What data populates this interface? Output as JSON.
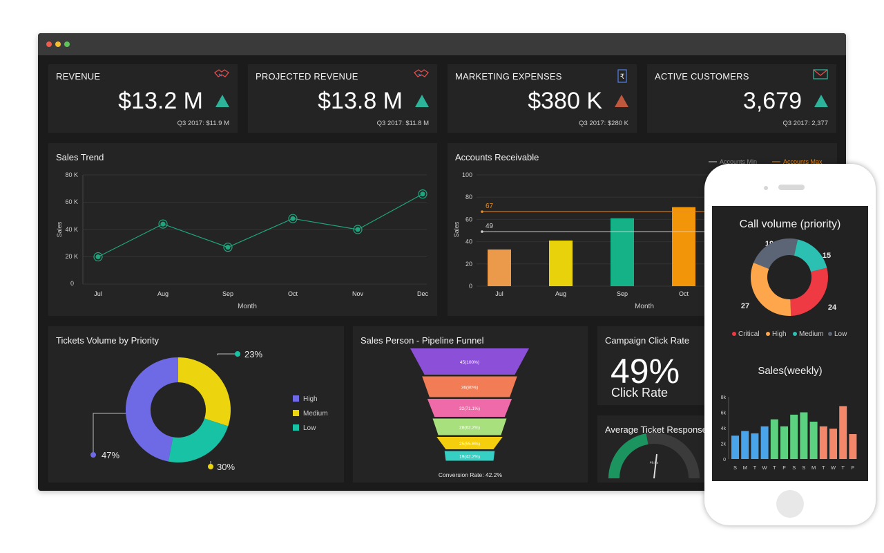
{
  "kpis": [
    {
      "title": "REVENUE",
      "value": "$13.2 M",
      "trend": "up",
      "sub": "Q3 2017: $11.9 M",
      "icon": "handshake-icon"
    },
    {
      "title": "PROJECTED REVENUE",
      "value": "$13.8 M",
      "trend": "up",
      "sub": "Q3 2017: $11.8 M",
      "icon": "handshake-icon"
    },
    {
      "title": "MARKETING EXPENSES",
      "value": "$380 K",
      "trend": "down",
      "sub": "Q3 2017: $280 K",
      "icon": "rupee-document-icon"
    },
    {
      "title": "ACTIVE CUSTOMERS",
      "value": "3,679",
      "trend": "up",
      "sub": "Q3 2017: 2,377",
      "icon": "envelope-icon"
    }
  ],
  "sales_trend": {
    "title": "Sales Trend",
    "xlabel": "Month",
    "ylabel": "Sales",
    "yticks": [
      "0",
      "20 K",
      "40 K",
      "60 K",
      "80 K"
    ]
  },
  "accounts": {
    "title": "Accounts Receivable",
    "xlabel": "Month",
    "ylabel": "Sales",
    "legend_min": "Accounts Min",
    "legend_max": "Accounts Max",
    "min_label": "49",
    "max_label": "67"
  },
  "tickets": {
    "title": "Tickets Volume by Priority",
    "labels": [
      "23%",
      "47%",
      "30%"
    ]
  },
  "funnel": {
    "title": "Sales Person - Pipeline Funnel",
    "footer": "Conversion Rate: 42.2%",
    "levels": [
      "45(100%)",
      "36(80%)",
      "32(71.1%)",
      "28(62.2%)",
      "25(55.6%)",
      "19(42.2%)"
    ]
  },
  "campaign": {
    "title": "Campaign Click Rate",
    "value": "49%",
    "caption": "Click Rate"
  },
  "ticket_response": {
    "title": "Average Ticket Response",
    "center_label": "4h:0s"
  },
  "mobile": {
    "call_title": "Call volume (priority)",
    "sales_title": "Sales(weekly)",
    "call_values": [
      "19",
      "15",
      "24",
      "27"
    ],
    "legend": [
      "Critical",
      "High",
      "Medium",
      "Low"
    ]
  },
  "colors": {
    "bg": "#1b1b1b",
    "panel": "#242424",
    "accent_green": "#2db39a",
    "accent_red": "#c0583e",
    "max_line": "#f08c1a"
  },
  "chart_data": [
    {
      "type": "line",
      "title": "Sales Trend",
      "xlabel": "Month",
      "ylabel": "Sales",
      "categories": [
        "Jul",
        "Aug",
        "Sep",
        "Oct",
        "Nov",
        "Dec"
      ],
      "values": [
        20000,
        44000,
        27000,
        48000,
        40000,
        66000
      ],
      "ylim": [
        0,
        80000
      ],
      "color": "#1fa67e"
    },
    {
      "type": "bar",
      "title": "Accounts Receivable",
      "xlabel": "Month",
      "ylabel": "Sales",
      "categories": [
        "Jul",
        "Aug",
        "Sep",
        "Oct"
      ],
      "values": [
        33,
        41,
        61,
        71
      ],
      "colors": [
        "#eb9a4b",
        "#e8d20c",
        "#16b287",
        "#f29509"
      ],
      "ylim": [
        0,
        100
      ],
      "yticks": [
        0,
        20,
        40,
        60,
        80,
        100
      ],
      "reference_lines": [
        {
          "name": "Accounts Min",
          "value": 49,
          "color": "#cfcfcf"
        },
        {
          "name": "Accounts Max",
          "value": 67,
          "color": "#f08c1a"
        }
      ]
    },
    {
      "type": "pie",
      "title": "Tickets Volume by Priority",
      "categories": [
        "High",
        "Medium",
        "Low"
      ],
      "values": [
        47,
        30,
        23
      ],
      "colors": [
        "#6e6ae6",
        "#ecd50f",
        "#18c2a5"
      ]
    },
    {
      "type": "bar",
      "title": "Sales Person - Pipeline Funnel",
      "categories": [
        "45(100%)",
        "36(80%)",
        "32(71.1%)",
        "28(62.2%)",
        "25(55.6%)",
        "19(42.2%)"
      ],
      "values": [
        45,
        36,
        32,
        28,
        25,
        19
      ],
      "colors": [
        "#8c4fd8",
        "#f27c55",
        "#ef6aa8",
        "#a8e07e",
        "#f5cf0d",
        "#35cfc4"
      ]
    },
    {
      "type": "pie",
      "title": "Call volume (priority)",
      "categories": [
        "Low",
        "Medium",
        "Critical",
        "High"
      ],
      "values": [
        19,
        15,
        24,
        27
      ],
      "colors": [
        "#5b6575",
        "#2cc0b3",
        "#ef3a44",
        "#fda64b"
      ]
    },
    {
      "type": "bar",
      "title": "Sales(weekly)",
      "categories": [
        "S",
        "M",
        "T",
        "W",
        "T",
        "F",
        "S",
        "S",
        "M",
        "T",
        "W",
        "T",
        "F"
      ],
      "values": [
        3000,
        3600,
        3300,
        4200,
        5100,
        4200,
        5700,
        6000,
        4800,
        4200,
        3900,
        6800,
        3200
      ],
      "colors": [
        "#4aa4ea",
        "#4aa4ea",
        "#4aa4ea",
        "#4aa4ea",
        "#5cd17f",
        "#5cd17f",
        "#5cd17f",
        "#5cd17f",
        "#5cd17f",
        "#f2876a",
        "#f2876a",
        "#f2876a",
        "#f2876a"
      ],
      "ylim": [
        0,
        8000
      ],
      "yticks": [
        "0",
        "2k",
        "4k",
        "6k",
        "8k"
      ]
    }
  ]
}
